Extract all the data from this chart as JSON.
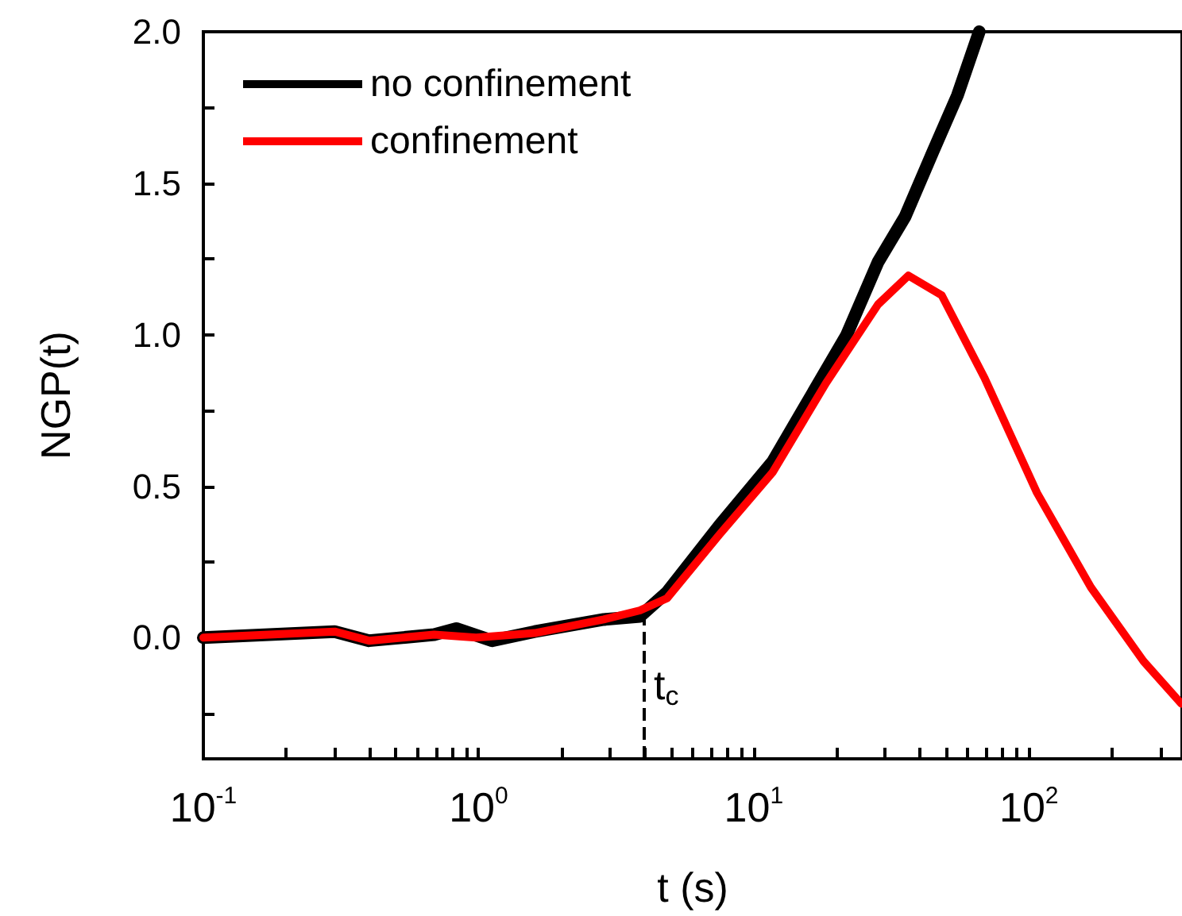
{
  "chart_data": {
    "type": "line",
    "xlabel": "t (s)",
    "ylabel": "NGP(t)",
    "log": "x",
    "xlim": [
      0.1,
      360
    ],
    "ylim": [
      -0.4,
      2.0
    ],
    "xticks": [
      {
        "value": 0.1,
        "label": "10$^{-1}$"
      },
      {
        "value": 0.2,
        "label": null
      },
      {
        "value": 0.3,
        "label": null
      },
      {
        "value": 0.4,
        "label": null
      },
      {
        "value": 0.5,
        "label": null
      },
      {
        "value": 0.6,
        "label": null
      },
      {
        "value": 0.7,
        "label": null
      },
      {
        "value": 0.8,
        "label": null
      },
      {
        "value": 0.9,
        "label": null
      },
      {
        "value": 1,
        "label": "10$^{0}$"
      },
      {
        "value": 2,
        "label": null
      },
      {
        "value": 3,
        "label": null
      },
      {
        "value": 4,
        "label": null
      },
      {
        "value": 5,
        "label": null
      },
      {
        "value": 6,
        "label": null
      },
      {
        "value": 7,
        "label": null
      },
      {
        "value": 8,
        "label": null
      },
      {
        "value": 9,
        "label": null
      },
      {
        "value": 10,
        "label": "10$^{1}$"
      },
      {
        "value": 20,
        "label": null
      },
      {
        "value": 30,
        "label": null
      },
      {
        "value": 40,
        "label": null
      },
      {
        "value": 50,
        "label": null
      },
      {
        "value": 60,
        "label": null
      },
      {
        "value": 70,
        "label": null
      },
      {
        "value": 80,
        "label": null
      },
      {
        "value": 90,
        "label": null
      },
      {
        "value": 100,
        "label": "10$^{2}$"
      },
      {
        "value": 200,
        "label": null
      },
      {
        "value": 300,
        "label": null
      }
    ],
    "yticks": [
      {
        "value": -0.25,
        "label": null
      },
      {
        "value": 0,
        "label": "0.0"
      },
      {
        "value": 0.25,
        "label": null
      },
      {
        "value": 0.5,
        "label": "0.5"
      },
      {
        "value": 0.75,
        "label": null
      },
      {
        "value": 1,
        "label": "1.0"
      },
      {
        "value": 1.25,
        "label": null
      },
      {
        "value": 1.5,
        "label": "1.5"
      },
      {
        "value": 1.75,
        "label": null
      },
      {
        "value": 2,
        "label": "2.0"
      }
    ],
    "grid": false,
    "legend": "top left",
    "marker": "none",
    "line_style": "solid",
    "series": [
      {
        "name": "no confinement",
        "color": "#000000",
        "x": [
          0.1,
          0.3,
          0.4,
          0.69,
          0.83,
          1.12,
          1.6,
          2.85,
          3.86,
          4.84,
          7.5,
          11.7,
          21.7,
          28.3,
          35.5,
          44.6,
          55,
          66
        ],
        "values": [
          0,
          0.02,
          -0.01,
          0.01,
          0.03,
          -0.01,
          0.02,
          0.06,
          0.07,
          0.15,
          0.37,
          0.58,
          0.997,
          1.24,
          1.39,
          1.6,
          1.79,
          2.0
        ]
      },
      {
        "name": "confinement",
        "color": "#ff0000",
        "x": [
          0.1,
          0.3,
          0.4,
          0.69,
          0.98,
          1.6,
          2.85,
          3.86,
          4.84,
          7.5,
          11.7,
          18.3,
          28.3,
          36.5,
          48.2,
          69,
          107,
          168,
          261,
          358
        ],
        "values": [
          0,
          0.02,
          -0.01,
          0.01,
          0,
          0.015,
          0.06,
          0.09,
          0.13,
          0.34,
          0.545,
          0.84,
          1.1,
          1.195,
          1.13,
          0.857,
          0.478,
          0.166,
          -0.078,
          -0.218
        ]
      }
    ],
    "ref_lines": [
      {
        "axis": "x",
        "value": 4,
        "label": "t$_{c}$",
        "color": "#000000",
        "line_style": "dashed"
      }
    ]
  }
}
